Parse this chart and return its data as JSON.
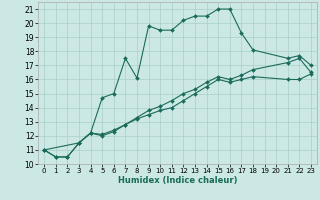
{
  "xlabel": "Humidex (Indice chaleur)",
  "xlim": [
    -0.5,
    23.5
  ],
  "ylim": [
    10,
    21.5
  ],
  "yticks": [
    10,
    11,
    12,
    13,
    14,
    15,
    16,
    17,
    18,
    19,
    20,
    21
  ],
  "xticks": [
    0,
    1,
    2,
    3,
    4,
    5,
    6,
    7,
    8,
    9,
    10,
    11,
    12,
    13,
    14,
    15,
    16,
    17,
    18,
    19,
    20,
    21,
    22,
    23
  ],
  "line_color": "#1a6b5a",
  "bg_color": "#cce8e5",
  "grid_color": "#aacfcc",
  "line1_x": [
    0,
    1,
    2,
    3,
    4,
    5,
    6,
    7,
    8,
    9,
    10,
    11,
    12,
    13,
    14,
    15,
    16,
    17,
    18,
    21,
    22,
    23
  ],
  "line1_y": [
    11,
    10.5,
    10.5,
    11.5,
    12.2,
    14.7,
    15.0,
    17.5,
    16.1,
    19.8,
    19.5,
    19.5,
    20.2,
    20.5,
    20.5,
    21.0,
    21.0,
    19.3,
    18.1,
    17.5,
    17.7,
    17.0
  ],
  "line2_x": [
    0,
    1,
    2,
    3,
    4,
    5,
    6,
    7,
    8,
    9,
    10,
    11,
    12,
    13,
    14,
    15,
    16,
    17,
    18,
    21,
    22,
    23
  ],
  "line2_y": [
    11,
    10.5,
    10.5,
    11.5,
    12.2,
    12.0,
    12.3,
    12.8,
    13.2,
    13.5,
    13.8,
    14.0,
    14.5,
    15.0,
    15.5,
    16.0,
    15.8,
    16.0,
    16.2,
    16.0,
    16.0,
    16.4
  ],
  "line3_x": [
    0,
    3,
    4,
    5,
    6,
    7,
    8,
    9,
    10,
    11,
    12,
    13,
    14,
    15,
    16,
    17,
    18,
    21,
    22,
    23
  ],
  "line3_y": [
    11,
    11.5,
    12.2,
    12.1,
    12.4,
    12.8,
    13.3,
    13.8,
    14.1,
    14.5,
    15.0,
    15.3,
    15.8,
    16.2,
    16.0,
    16.3,
    16.7,
    17.2,
    17.5,
    16.5
  ]
}
